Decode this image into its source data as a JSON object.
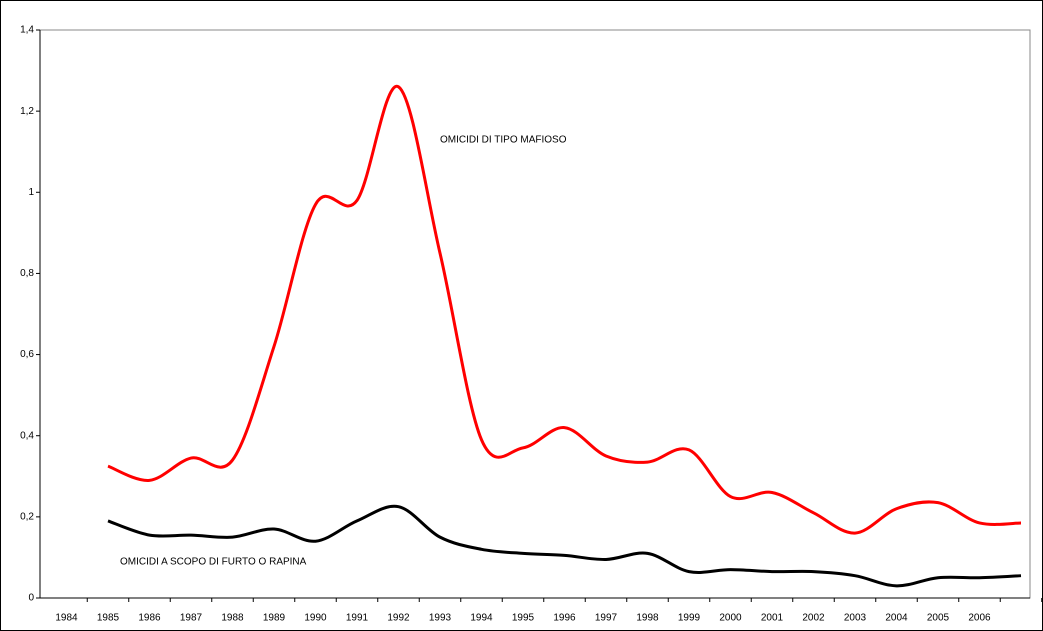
{
  "chart_data": {
    "type": "line",
    "categories": [
      "1984",
      "1985",
      "1986",
      "1987",
      "1988",
      "1989",
      "1990",
      "1991",
      "1992",
      "1993",
      "1994",
      "1995",
      "1996",
      "1997",
      "1998",
      "1999",
      "2000",
      "2001",
      "2002",
      "2003",
      "2004",
      "2005",
      "2006",
      null
    ],
    "series": [
      {
        "name": "OMICIDI DI TIPO MAFIOSO",
        "color": "#ff0000",
        "values": [
          null,
          0.325,
          0.29,
          0.345,
          0.34,
          0.62,
          0.97,
          0.98,
          1.26,
          0.85,
          0.39,
          0.37,
          0.42,
          0.35,
          0.335,
          0.365,
          0.25,
          0.26,
          0.21,
          0.16,
          0.22,
          0.235,
          0.185,
          0.185
        ]
      },
      {
        "name": "OMICIDI A SCOPO DI FURTO O RAPINA",
        "color": "#000000",
        "values": [
          null,
          0.19,
          0.155,
          0.155,
          0.15,
          0.17,
          0.14,
          0.19,
          0.225,
          0.15,
          0.12,
          0.11,
          0.105,
          0.095,
          0.11,
          0.065,
          0.07,
          0.065,
          0.065,
          0.055,
          0.03,
          0.05,
          0.05,
          0.055
        ]
      }
    ],
    "ylim": [
      0,
      1.4
    ],
    "yticks": [
      0,
      {
        "value": 0.2,
        "label": "0,2"
      },
      {
        "value": 0.4,
        "label": "0,4"
      },
      {
        "value": 0.6,
        "label": "0,6"
      },
      {
        "value": 0.8,
        "label": "0,8"
      },
      1,
      {
        "value": 1.2,
        "label": "1,2"
      },
      {
        "value": 1.4,
        "label": "1,4"
      }
    ]
  }
}
